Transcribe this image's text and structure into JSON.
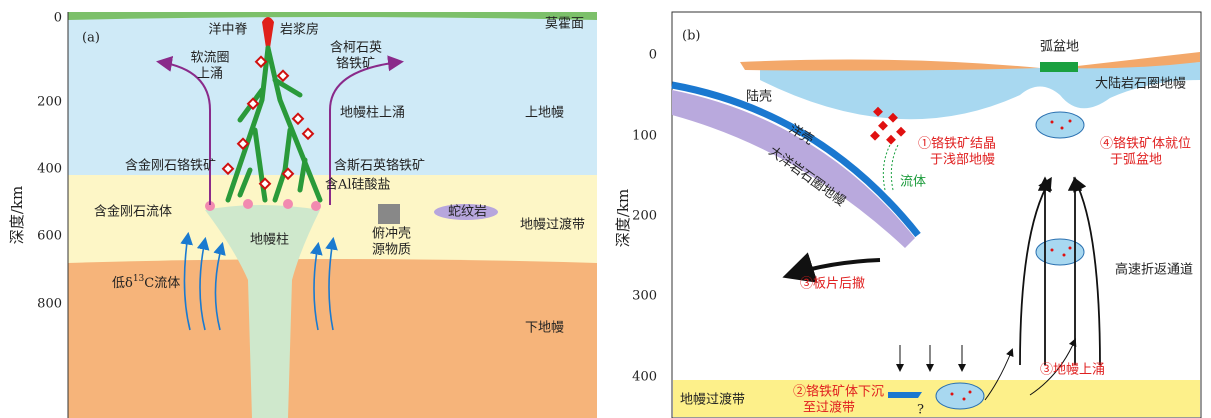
{
  "panel_a": {
    "label": "(a)",
    "y_axis_label": "深度/km",
    "yticks": [
      "0",
      "200",
      "400",
      "600",
      "800"
    ],
    "moho": "莫霍面",
    "ridge": "洋中脊",
    "magma_chamber": "岩浆房",
    "asthenosphere": [
      "软流圈",
      "上涌"
    ],
    "coesite": [
      "含柯石英",
      "铬铁矿"
    ],
    "plume_upwelling": "地幔柱上涌",
    "upper_mantle": "上地幔",
    "diamond_chromitite": "含金刚石铬铁矿",
    "stishovite_chromitite": "含斯石英铬铁矿",
    "al_silicate": "含Al硅酸盐",
    "diamond_fluid": "含金刚石流体",
    "serpentinite": "蛇纹岩",
    "plume": "地幔柱",
    "subducted_crust": [
      "俯冲壳",
      "源物质"
    ],
    "transition_zone": "地幔过渡带",
    "low_c_fluid": [
      "低δ",
      "13",
      "C流体"
    ],
    "lower_mantle": "下地幔"
  },
  "panel_b": {
    "label": "(b)",
    "y_axis_label": "深度/km",
    "yticks": [
      "0",
      "100",
      "200",
      "300",
      "400"
    ],
    "continental_crust": "陆壳",
    "arc_basin": "弧盆地",
    "continental_lithosphere": "大陆岩石圈地幔",
    "oceanic_crust": "洋壳",
    "oceanic_lithosphere": "大洋岩石圈地幔",
    "step1": [
      "①铬铁矿结晶",
      "于浅部地幔"
    ],
    "step4": [
      "④铬铁矿体就位",
      "于弧盆地"
    ],
    "fluid": "流体",
    "slab_rollback": "③板片后撤",
    "exhumation_channel": "高速折返通道",
    "mantle_upwelling": "③地幔上涌",
    "transition_zone": "地幔过渡带",
    "step2": [
      "②铬铁矿体下沉",
      "至过渡带"
    ],
    "question": "?"
  }
}
